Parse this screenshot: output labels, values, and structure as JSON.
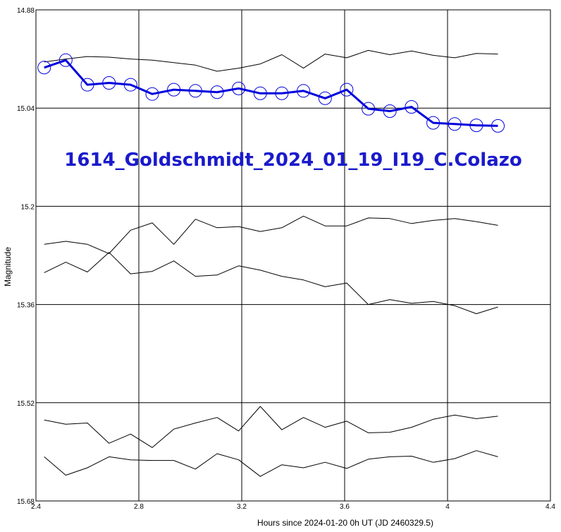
{
  "chart_data": {
    "type": "line",
    "title": "1614_Goldschmidt_2024_01_19_I19_C.Colazo",
    "xlabel": "Hours since 2024-01-20 0h UT (JD 2460329.5)",
    "ylabel": "Magnitude",
    "xlim": [
      2.4,
      4.4
    ],
    "ylim": [
      14.88,
      15.68
    ],
    "y_inverted": true,
    "grid": true,
    "x_ticks": [
      "2.4",
      "2.8",
      "3.2",
      "3.6",
      "4",
      "4.4"
    ],
    "y_ticks": [
      "14.88",
      "15.04",
      "15.2",
      "15.36",
      "15.52",
      "15.68"
    ],
    "x": [
      2.432,
      2.516,
      2.6,
      2.684,
      2.768,
      2.852,
      2.936,
      3.02,
      3.104,
      3.188,
      3.272,
      3.356,
      3.44,
      3.524,
      3.608,
      3.692,
      3.776,
      3.86,
      3.944,
      4.028,
      4.112,
      4.196
    ],
    "series": [
      {
        "color": "#0000dd",
        "markers": true,
        "values": [
          14.974,
          14.962,
          15.002,
          14.999,
          15.002,
          15.017,
          15.01,
          15.012,
          15.014,
          15.008,
          15.016,
          15.016,
          15.012,
          15.024,
          15.01,
          15.041,
          15.045,
          15.038,
          15.064,
          15.066,
          15.068,
          15.069
        ]
      },
      {
        "color": "#000000",
        "markers": false,
        "values": [
          14.965,
          14.96,
          14.956,
          14.957,
          14.96,
          14.962,
          14.966,
          14.97,
          14.98,
          14.975,
          14.968,
          14.953,
          14.975,
          14.952,
          14.958,
          14.946,
          14.953,
          14.947,
          14.954,
          14.958,
          14.951,
          14.952
        ]
      },
      {
        "color": "#000000",
        "markers": false,
        "values": [
          15.262,
          15.257,
          15.262,
          15.277,
          15.239,
          15.227,
          15.262,
          15.221,
          15.235,
          15.233,
          15.241,
          15.235,
          15.216,
          15.232,
          15.232,
          15.219,
          15.22,
          15.228,
          15.223,
          15.22,
          15.225,
          15.231
        ]
      },
      {
        "color": "#000000",
        "markers": false,
        "values": [
          15.308,
          15.291,
          15.307,
          15.275,
          15.31,
          15.306,
          15.289,
          15.314,
          15.312,
          15.297,
          15.304,
          15.314,
          15.32,
          15.331,
          15.325,
          15.36,
          15.352,
          15.358,
          15.355,
          15.362,
          15.375,
          15.364
        ]
      },
      {
        "color": "#000000",
        "markers": false,
        "values": [
          15.548,
          15.555,
          15.553,
          15.586,
          15.571,
          15.593,
          15.563,
          15.553,
          15.544,
          15.566,
          15.526,
          15.564,
          15.544,
          15.56,
          15.55,
          15.569,
          15.568,
          15.56,
          15.547,
          15.54,
          15.546,
          15.542
        ]
      },
      {
        "color": "#000000",
        "markers": false,
        "values": [
          15.608,
          15.638,
          15.626,
          15.608,
          15.613,
          15.614,
          15.614,
          15.628,
          15.603,
          15.613,
          15.64,
          15.621,
          15.626,
          15.617,
          15.627,
          15.612,
          15.608,
          15.607,
          15.617,
          15.611,
          15.598,
          15.608
        ]
      }
    ]
  }
}
